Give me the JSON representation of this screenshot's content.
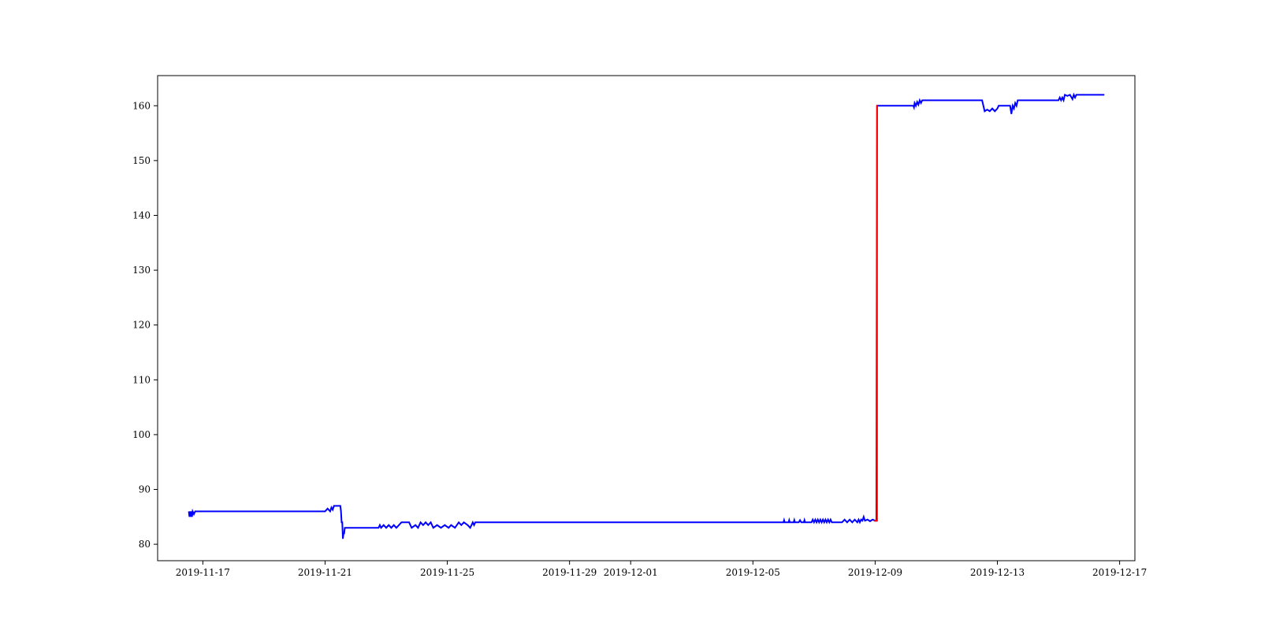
{
  "chart_data": {
    "type": "line",
    "title": "",
    "xlabel": "",
    "ylabel": "",
    "x_axis_type": "date",
    "xlim": [
      "2019-11-15T12:30",
      "2019-12-17T12:00"
    ],
    "ylim": [
      77,
      165.5
    ],
    "grid": false,
    "legend": "none",
    "x_ticks": [
      {
        "value": "2019-11-17",
        "label": "2019-11-17"
      },
      {
        "value": "2019-11-21",
        "label": "2019-11-21"
      },
      {
        "value": "2019-11-25",
        "label": "2019-11-25"
      },
      {
        "value": "2019-11-29",
        "label": "2019-11-29"
      },
      {
        "value": "2019-12-01",
        "label": "2019-12-01"
      },
      {
        "value": "2019-12-05",
        "label": "2019-12-05"
      },
      {
        "value": "2019-12-09",
        "label": "2019-12-09"
      },
      {
        "value": "2019-12-13",
        "label": "2019-12-13"
      },
      {
        "value": "2019-12-17",
        "label": "2019-12-17"
      }
    ],
    "y_ticks": [
      {
        "value": 80,
        "label": "80"
      },
      {
        "value": 90,
        "label": "90"
      },
      {
        "value": 100,
        "label": "100"
      },
      {
        "value": 110,
        "label": "110"
      },
      {
        "value": 120,
        "label": "120"
      },
      {
        "value": 130,
        "label": "130"
      },
      {
        "value": 140,
        "label": "140"
      },
      {
        "value": 150,
        "label": "150"
      },
      {
        "value": 160,
        "label": "160"
      },
      {
        "value": 170,
        "label": ""
      }
    ],
    "series": [
      {
        "color": "#0000ff",
        "points": [
          [
            "2019-11-16T13:00",
            86
          ],
          [
            "2019-11-16T13:30",
            85
          ],
          [
            "2019-11-16T14:00",
            86
          ],
          [
            "2019-11-16T14:30",
            85
          ],
          [
            "2019-11-16T15:00",
            86
          ],
          [
            "2019-11-16T15:30",
            85
          ],
          [
            "2019-11-16T16:00",
            86
          ],
          [
            "2019-11-16T17:00",
            85.5
          ],
          [
            "2019-11-16T18:00",
            86
          ],
          [
            "2019-11-21T00:00",
            86
          ],
          [
            "2019-11-21T02:00",
            86.5
          ],
          [
            "2019-11-21T04:00",
            86
          ],
          [
            "2019-11-21T05:00",
            86.7
          ],
          [
            "2019-11-21T06:00",
            86.3
          ],
          [
            "2019-11-21T07:00",
            87
          ],
          [
            "2019-11-21T12:00",
            87
          ],
          [
            "2019-11-21T12:30",
            86
          ],
          [
            "2019-11-21T13:00",
            84
          ],
          [
            "2019-11-21T13:30",
            84
          ],
          [
            "2019-11-21T14:00",
            81
          ],
          [
            "2019-11-21T14:30",
            82
          ],
          [
            "2019-11-21T15:00",
            82
          ],
          [
            "2019-11-21T15:30",
            83
          ],
          [
            "2019-11-22T18:00",
            83
          ],
          [
            "2019-11-22T19:00",
            83.5
          ],
          [
            "2019-11-22T20:00",
            83
          ],
          [
            "2019-11-22T22:00",
            83.5
          ],
          [
            "2019-11-23T00:00",
            83
          ],
          [
            "2019-11-23T02:00",
            83.5
          ],
          [
            "2019-11-23T04:00",
            83
          ],
          [
            "2019-11-23T06:00",
            83.5
          ],
          [
            "2019-11-23T08:00",
            83
          ],
          [
            "2019-11-23T10:00",
            83.5
          ],
          [
            "2019-11-23T12:00",
            84
          ],
          [
            "2019-11-23T18:00",
            84
          ],
          [
            "2019-11-23T20:00",
            83
          ],
          [
            "2019-11-23T23:00",
            83.5
          ],
          [
            "2019-11-24T01:00",
            83
          ],
          [
            "2019-11-24T03:00",
            84
          ],
          [
            "2019-11-24T05:00",
            83.5
          ],
          [
            "2019-11-24T07:00",
            84
          ],
          [
            "2019-11-24T09:00",
            83.5
          ],
          [
            "2019-11-24T11:00",
            84
          ],
          [
            "2019-11-24T13:00",
            83
          ],
          [
            "2019-11-24T16:00",
            83.5
          ],
          [
            "2019-11-24T19:00",
            83
          ],
          [
            "2019-11-24T22:00",
            83.5
          ],
          [
            "2019-11-25T01:00",
            83
          ],
          [
            "2019-11-25T03:00",
            83.5
          ],
          [
            "2019-11-25T06:00",
            83
          ],
          [
            "2019-11-25T09:00",
            84
          ],
          [
            "2019-11-25T11:00",
            83.5
          ],
          [
            "2019-11-25T13:00",
            84
          ],
          [
            "2019-11-25T16:00",
            83.5
          ],
          [
            "2019-11-25T18:00",
            83
          ],
          [
            "2019-11-25T20:00",
            84
          ],
          [
            "2019-11-25T21:00",
            83.5
          ],
          [
            "2019-11-25T22:00",
            84
          ],
          [
            "2019-12-06T00:00",
            84
          ],
          [
            "2019-12-06T00:30",
            84.4
          ],
          [
            "2019-12-06T01:00",
            84
          ],
          [
            "2019-12-06T04:00",
            84
          ],
          [
            "2019-12-06T04:30",
            84.4
          ],
          [
            "2019-12-06T05:00",
            84
          ],
          [
            "2019-12-06T08:00",
            84
          ],
          [
            "2019-12-06T08:30",
            84.4
          ],
          [
            "2019-12-06T09:00",
            84
          ],
          [
            "2019-12-06T12:00",
            84
          ],
          [
            "2019-12-06T13:00",
            84.4
          ],
          [
            "2019-12-06T14:00",
            84
          ],
          [
            "2019-12-06T16:00",
            84
          ],
          [
            "2019-12-06T16:30",
            84.4
          ],
          [
            "2019-12-06T17:00",
            84
          ],
          [
            "2019-12-06T22:00",
            84
          ],
          [
            "2019-12-06T23:00",
            84.5
          ],
          [
            "2019-12-07T00:00",
            84
          ],
          [
            "2019-12-07T01:00",
            84.5
          ],
          [
            "2019-12-07T02:00",
            84
          ],
          [
            "2019-12-07T03:00",
            84.5
          ],
          [
            "2019-12-07T04:00",
            84
          ],
          [
            "2019-12-07T05:00",
            84.5
          ],
          [
            "2019-12-07T06:00",
            84
          ],
          [
            "2019-12-07T07:00",
            84.5
          ],
          [
            "2019-12-07T08:00",
            84
          ],
          [
            "2019-12-07T09:00",
            84.5
          ],
          [
            "2019-12-07T10:00",
            84
          ],
          [
            "2019-12-07T11:00",
            84.5
          ],
          [
            "2019-12-07T12:00",
            84
          ],
          [
            "2019-12-07T13:00",
            84.5
          ],
          [
            "2019-12-07T14:00",
            84
          ],
          [
            "2019-12-07T22:00",
            84
          ],
          [
            "2019-12-08T00:00",
            84.5
          ],
          [
            "2019-12-08T02:00",
            84
          ],
          [
            "2019-12-08T04:00",
            84.5
          ],
          [
            "2019-12-08T06:00",
            84
          ],
          [
            "2019-12-08T08:00",
            84.5
          ],
          [
            "2019-12-08T10:00",
            84
          ],
          [
            "2019-12-08T11:00",
            84.5
          ],
          [
            "2019-12-08T12:00",
            84
          ],
          [
            "2019-12-08T13:00",
            84.5
          ],
          [
            "2019-12-08T14:00",
            84.3
          ],
          [
            "2019-12-08T15:00",
            85
          ],
          [
            "2019-12-08T16:00",
            84.3
          ],
          [
            "2019-12-08T18:00",
            84.5
          ],
          [
            "2019-12-08T20:00",
            84.2
          ],
          [
            "2019-12-08T22:00",
            84.5
          ],
          [
            "2019-12-09T00:00",
            84.3
          ],
          [
            "2019-12-09T01:00",
            84.3
          ],
          [
            "2019-12-09T01:30",
            160
          ],
          [
            "2019-12-10T06:00",
            160
          ],
          [
            "2019-12-10T06:30",
            159.7
          ],
          [
            "2019-12-10T07:00",
            160.5
          ],
          [
            "2019-12-10T08:00",
            160
          ],
          [
            "2019-12-10T09:00",
            160.7
          ],
          [
            "2019-12-10T10:00",
            160.2
          ],
          [
            "2019-12-10T11:00",
            161
          ],
          [
            "2019-12-10T12:00",
            160.5
          ],
          [
            "2019-12-10T13:00",
            161
          ],
          [
            "2019-12-12T12:00",
            161
          ],
          [
            "2019-12-12T13:00",
            160
          ],
          [
            "2019-12-12T14:00",
            159
          ],
          [
            "2019-12-12T16:00",
            159.3
          ],
          [
            "2019-12-12T18:00",
            159
          ],
          [
            "2019-12-12T20:00",
            159.5
          ],
          [
            "2019-12-12T22:00",
            159
          ],
          [
            "2019-12-13T00:00",
            159.5
          ],
          [
            "2019-12-13T01:00",
            160
          ],
          [
            "2019-12-13T10:00",
            160
          ],
          [
            "2019-12-13T11:00",
            158.5
          ],
          [
            "2019-12-13T12:00",
            160
          ],
          [
            "2019-12-13T13:00",
            159.5
          ],
          [
            "2019-12-13T14:00",
            160.5
          ],
          [
            "2019-12-13T15:00",
            160
          ],
          [
            "2019-12-13T16:00",
            161
          ],
          [
            "2019-12-15T00:00",
            161
          ],
          [
            "2019-12-15T01:00",
            161.5
          ],
          [
            "2019-12-15T02:00",
            161
          ],
          [
            "2019-12-15T03:00",
            161.5
          ],
          [
            "2019-12-15T04:00",
            161
          ],
          [
            "2019-12-15T05:00",
            162
          ],
          [
            "2019-12-15T07:00",
            161.8
          ],
          [
            "2019-12-15T09:00",
            162
          ],
          [
            "2019-12-15T11:00",
            161.2
          ],
          [
            "2019-12-15T12:00",
            162
          ],
          [
            "2019-12-15T13:00",
            161.5
          ],
          [
            "2019-12-15T14:00",
            162
          ],
          [
            "2019-12-16T12:00",
            162
          ]
        ]
      },
      {
        "color": "#ff0000",
        "points": [
          [
            "2019-12-08T23:00",
            84.3
          ],
          [
            "2019-12-09T01:30",
            84.3
          ],
          [
            "2019-12-09T01:30",
            160
          ],
          [
            "2019-12-09T02:00",
            160
          ]
        ]
      }
    ]
  }
}
